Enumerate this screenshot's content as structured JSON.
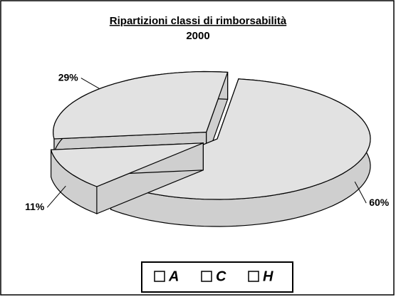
{
  "chart_data": {
    "type": "pie3d",
    "title": "Ripartizioni classi di rimborsabilità",
    "subtitle": "2000",
    "categories": [
      "A",
      "C",
      "H"
    ],
    "values": [
      60,
      11,
      29
    ],
    "value_labels": [
      "60%",
      "11%",
      "29%"
    ],
    "color": "#e2e2e2",
    "legend": "bottom"
  }
}
